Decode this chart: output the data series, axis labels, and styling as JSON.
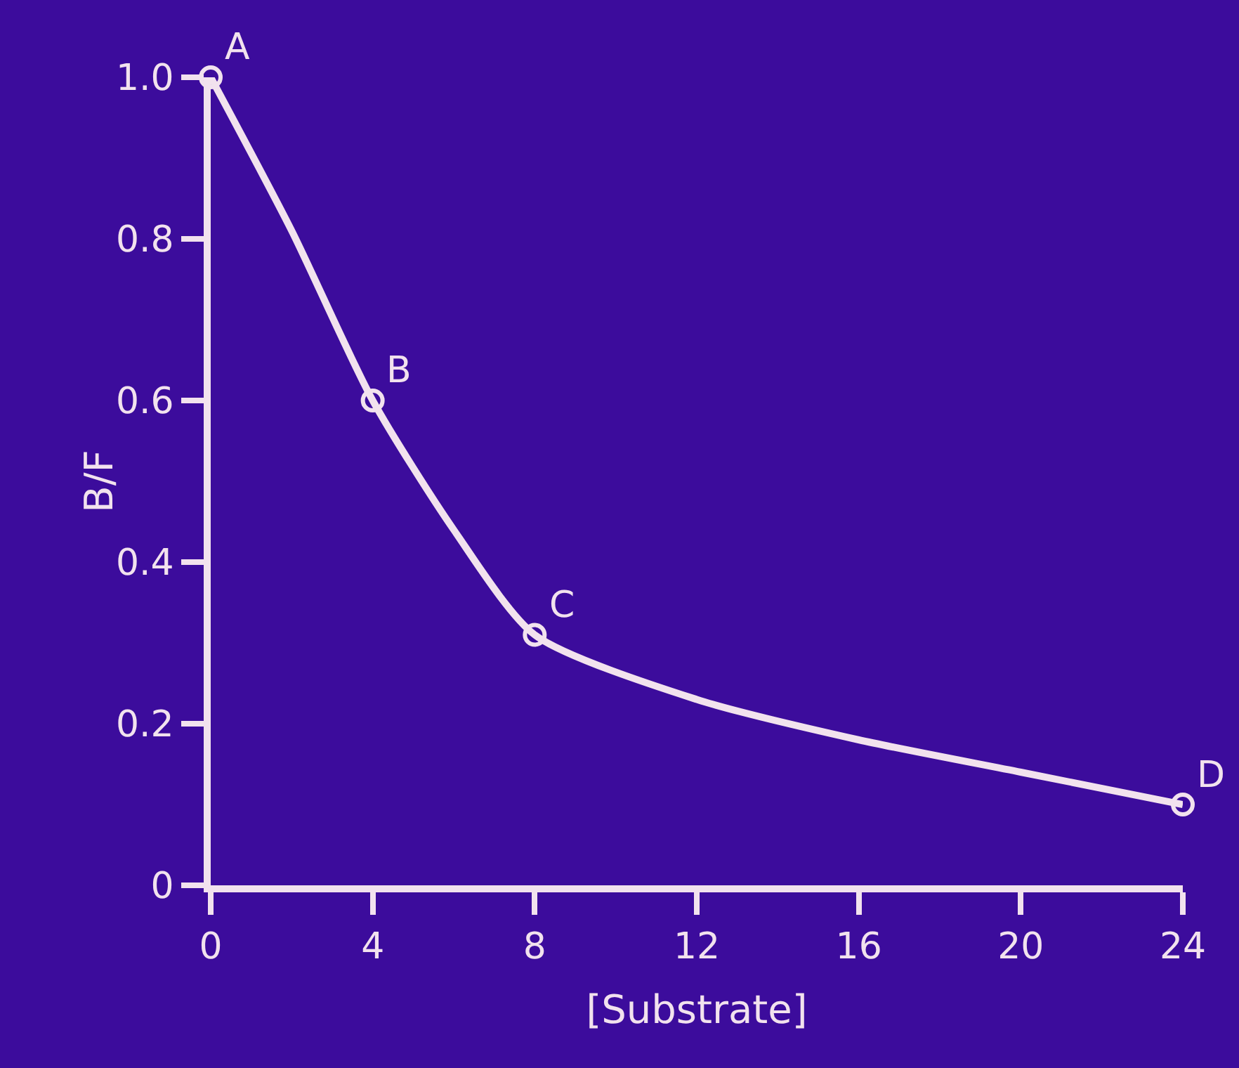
{
  "chart_data": {
    "type": "line",
    "xlabel": "[Substrate]",
    "ylabel": "B/F",
    "xlim": [
      0,
      24
    ],
    "ylim": [
      0,
      1
    ],
    "xticks": [
      0,
      4,
      8,
      12,
      16,
      20,
      24
    ],
    "yticks": [
      0,
      {
        "value": 0.2,
        "label": "0.2"
      },
      {
        "value": 0.4,
        "label": "0.4"
      },
      {
        "value": 0.6,
        "label": "0.6"
      },
      {
        "value": 0.8,
        "label": "0.8"
      },
      {
        "value": 1,
        "label": "1.0"
      }
    ],
    "grid": false,
    "series": [
      {
        "marker": "none",
        "color": "#f2e2ee",
        "x": [
          0,
          2,
          4,
          6,
          8,
          12,
          16,
          20,
          24
        ],
        "values": [
          1.0,
          0.81,
          0.6,
          0.44,
          0.31,
          0.23,
          0.18,
          0.14,
          0.1
        ]
      },
      {
        "type": "scatter",
        "marker": "circle",
        "color": "#f2e2ee",
        "x": [
          0,
          4,
          8,
          24
        ],
        "values": [
          1.0,
          0.6,
          0.31,
          0.1
        ]
      }
    ],
    "annotations": [
      {
        "text": "A",
        "x": 0,
        "y": 1.0
      },
      {
        "text": "B",
        "x": 4,
        "y": 0.6
      },
      {
        "text": "C",
        "x": 8,
        "y": 0.31
      },
      {
        "text": "D",
        "x": 24,
        "y": 0.1
      }
    ]
  }
}
